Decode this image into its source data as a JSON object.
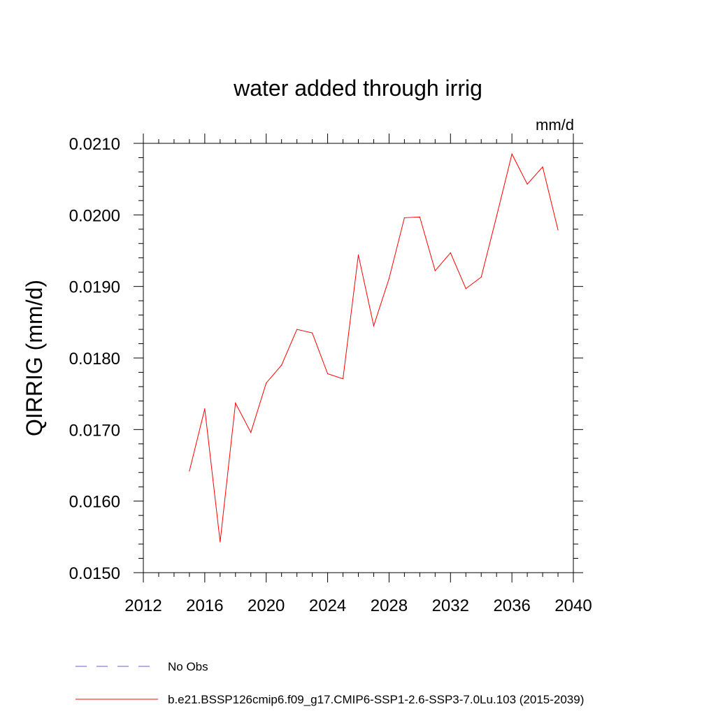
{
  "chart_data": {
    "type": "line",
    "title": "water added through irrig",
    "units": "mm/d",
    "ylabel": "QIRRIG  (mm/d)",
    "xlabel": "",
    "xlim": [
      2012,
      2040
    ],
    "ylim": [
      0.015,
      0.021
    ],
    "x_ticks": [
      2012,
      2016,
      2020,
      2024,
      2028,
      2032,
      2036,
      2040
    ],
    "x_tick_labels": [
      "2012",
      "2016",
      "2020",
      "2024",
      "2028",
      "2032",
      "2036",
      "2040"
    ],
    "y_ticks": [
      0.015,
      0.016,
      0.017,
      0.018,
      0.019,
      0.02,
      0.021
    ],
    "y_tick_labels": [
      "0.0150",
      "0.0160",
      "0.0170",
      "0.0180",
      "0.0190",
      "0.0200",
      "0.0210"
    ],
    "grid": false,
    "legend_position": "bottom",
    "legend": [
      {
        "label": "No Obs",
        "color": "#6a5acd",
        "style": "dashed"
      },
      {
        "label": "b.e21.BSSP126cmip6.f09_g17.CMIP6-SSP1-2.6-SSP3-7.0Lu.103 (2015-2039)",
        "color": "#ff0000",
        "style": "solid"
      }
    ],
    "series": [
      {
        "name": "b.e21.BSSP126cmip6.f09_g17.CMIP6-SSP1-2.6-SSP3-7.0Lu.103 (2015-2039)",
        "color": "#ff0000",
        "x": [
          2015,
          2016,
          2017,
          2018,
          2019,
          2020,
          2021,
          2022,
          2023,
          2024,
          2025,
          2026,
          2027,
          2028,
          2029,
          2030,
          2031,
          2032,
          2033,
          2034,
          2035,
          2036,
          2037,
          2038,
          2039
        ],
        "y": [
          0.01642,
          0.01729,
          0.01543,
          0.01737,
          0.01696,
          0.01765,
          0.0179,
          0.0184,
          0.01835,
          0.01778,
          0.01771,
          0.01944,
          0.01845,
          0.01911,
          0.01996,
          0.01997,
          0.01922,
          0.01947,
          0.01897,
          0.01913,
          0.01998,
          0.02085,
          0.02043,
          0.02067,
          0.01979
        ]
      }
    ]
  }
}
